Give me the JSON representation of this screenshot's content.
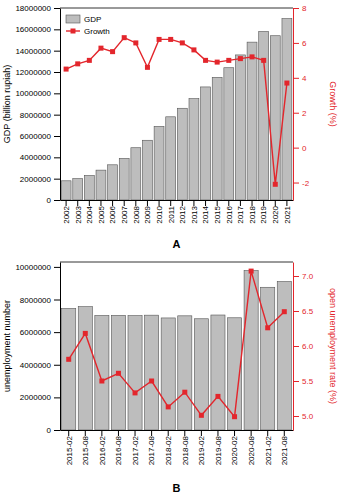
{
  "chart_data": [
    {
      "type": "bar",
      "title": "A",
      "categories": [
        "2002",
        "2003",
        "2004",
        "2005",
        "2006",
        "2007",
        "2008",
        "2009",
        "2010",
        "2011",
        "2012",
        "2013",
        "2014",
        "2015",
        "2016",
        "2017",
        "2018",
        "2019",
        "2020",
        "2021"
      ],
      "y_label": "GDP (billion rupiah)",
      "y2_label": "Growth (%)",
      "ylim": [
        0,
        18000000
      ],
      "yticks": [
        0,
        2000000,
        4000000,
        6000000,
        8000000,
        10000000,
        12000000,
        14000000,
        16000000,
        18000000
      ],
      "y2lim": [
        -3,
        8
      ],
      "y2ticks": [
        -2,
        0,
        2,
        4,
        6,
        8
      ],
      "legend": "upper left",
      "series": [
        {
          "name": "GDP",
          "type": "bar",
          "color": "#bdbdbd",
          "values": [
            1800000,
            2000000,
            2300000,
            2800000,
            3300000,
            3900000,
            4900000,
            5600000,
            6900000,
            7800000,
            8600000,
            9500000,
            10600000,
            11500000,
            12400000,
            13600000,
            14800000,
            15800000,
            15400000,
            17000000
          ]
        },
        {
          "name": "Growth",
          "type": "line",
          "axis": "y2",
          "color": "#e3262c",
          "marker": "square",
          "values": [
            4.5,
            4.8,
            5.0,
            5.7,
            5.5,
            6.3,
            6.0,
            4.6,
            6.2,
            6.2,
            6.0,
            5.6,
            5.0,
            4.9,
            5.0,
            5.1,
            5.2,
            5.0,
            -2.1,
            3.7
          ]
        }
      ]
    },
    {
      "type": "bar",
      "title": "B",
      "categories": [
        "2015-02",
        "2015-08",
        "2016-02",
        "2016-08",
        "2017-02",
        "2017-08",
        "2018-02",
        "2018-08",
        "2019-02",
        "2019-08",
        "2020-02",
        "2020-08",
        "2021-02",
        "2021-08"
      ],
      "y_label": "unemployment number",
      "y2_label": "open unemployment rate (%)",
      "ylim": [
        0,
        10300000
      ],
      "yticks": [
        0,
        2000000,
        4000000,
        6000000,
        8000000,
        10000000
      ],
      "y2lim": [
        4.8,
        7.2
      ],
      "y2ticks": [
        {
          "value": 5,
          "label": "5.0"
        },
        {
          "value": 5.5,
          "label": "5.5"
        },
        {
          "value": 6,
          "label": "6.0"
        },
        {
          "value": 6.5,
          "label": "6.5"
        },
        {
          "value": 7,
          "label": "7.0"
        }
      ],
      "series": [
        {
          "type": "bar",
          "color": "#bdbdbd",
          "values": [
            7450000,
            7560000,
            7020000,
            7030000,
            7010000,
            7040000,
            6870000,
            7000000,
            6820000,
            7050000,
            6880000,
            9770000,
            8750000,
            9100000
          ]
        },
        {
          "type": "line",
          "axis": "y2",
          "color": "#e3262c",
          "marker": "square",
          "values": [
            5.81,
            6.18,
            5.5,
            5.61,
            5.33,
            5.5,
            5.13,
            5.34,
            5.01,
            5.28,
            4.99,
            7.07,
            6.26,
            6.49
          ]
        }
      ]
    }
  ]
}
